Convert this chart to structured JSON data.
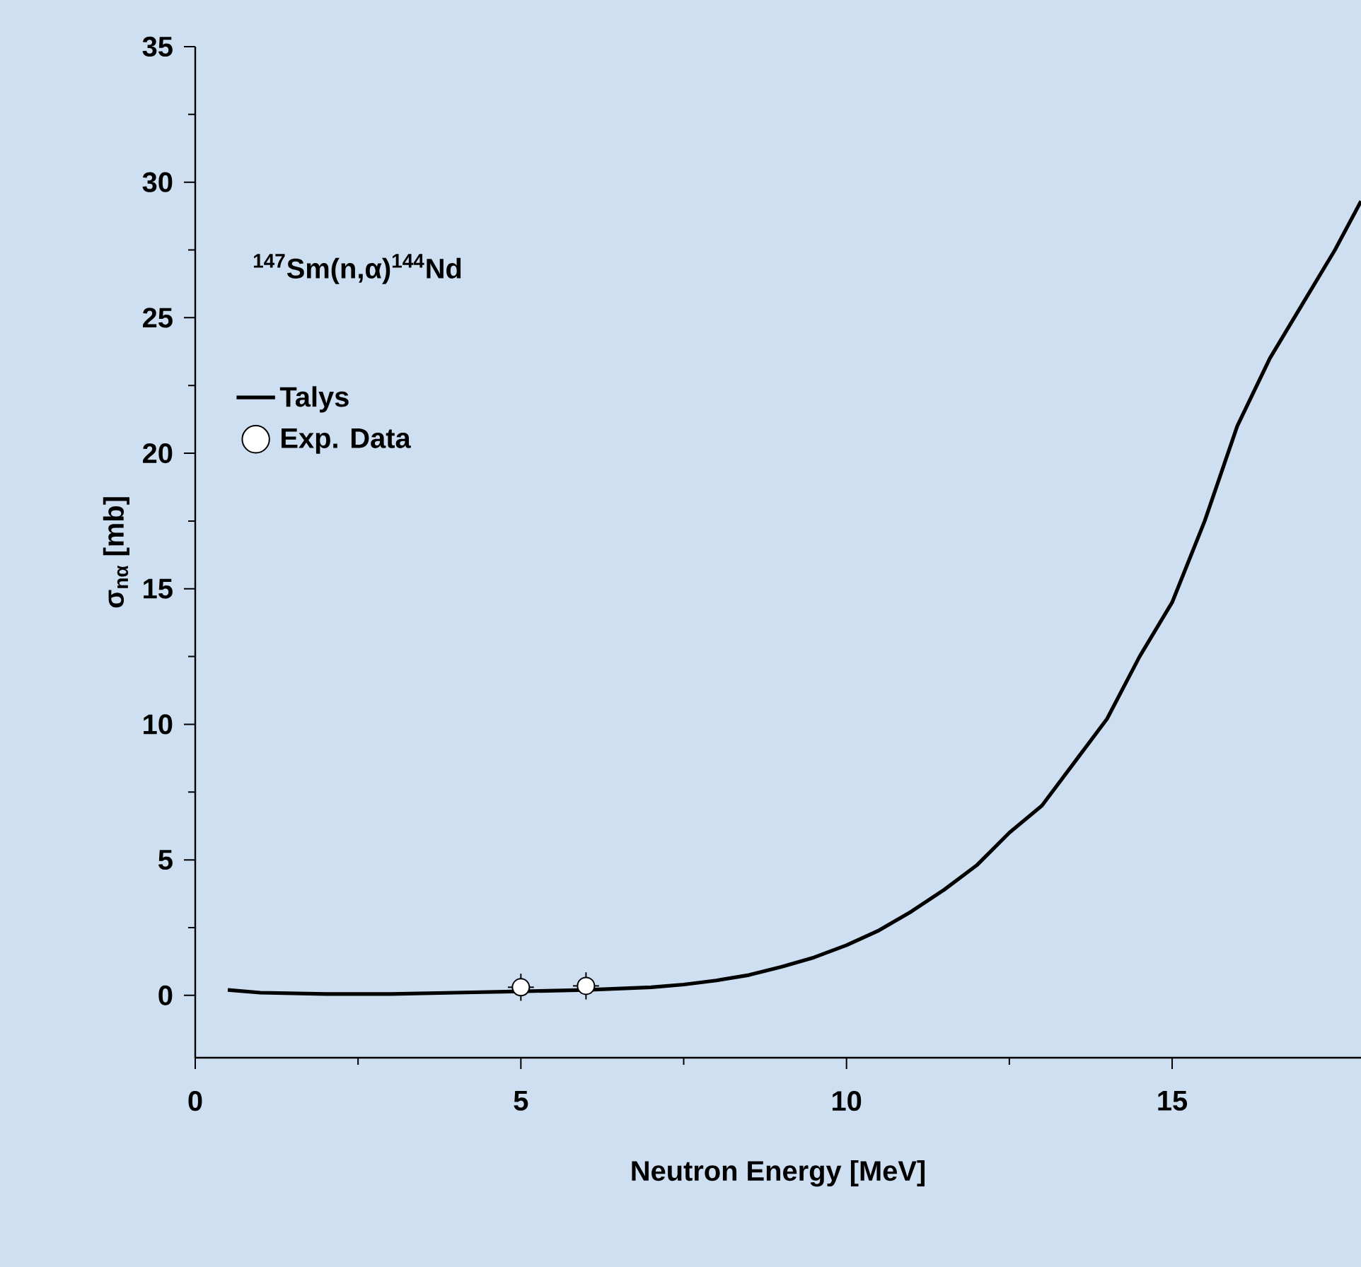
{
  "chart_data": {
    "type": "line",
    "xlabel": "Neutron Energy [MeV]",
    "ylabel": "σ$_{nα}$ [mb]",
    "annotations": [
      "$^{147}$Sm(n,α)$^{144}$Nd"
    ],
    "xlim": [
      0,
      17.9
    ],
    "ylim": [
      -2.3,
      35
    ],
    "xticks": [
      0,
      5,
      10,
      15
    ],
    "yticks": [
      0,
      5,
      10,
      15,
      20,
      25,
      30,
      35
    ],
    "legend": "top left",
    "grid": false,
    "series": [
      {
        "name": "Talys",
        "color": "#000000",
        "marker": "none",
        "line_style": "solid",
        "x": [
          0.5,
          1,
          2,
          3,
          4,
          5,
          6,
          7,
          7.5,
          8,
          8.5,
          9,
          9.5,
          10,
          10.5,
          11,
          11.5,
          12,
          12.5,
          13,
          13.5,
          14,
          14.5,
          15,
          15.5,
          16,
          16.5,
          17,
          17.5,
          17.9
        ],
        "values": [
          0.2,
          0.1,
          0.05,
          0.05,
          0.1,
          0.15,
          0.2,
          0.3,
          0.4,
          0.55,
          0.75,
          1.05,
          1.4,
          1.85,
          2.4,
          3.1,
          3.9,
          4.8,
          6.0,
          7.0,
          8.6,
          10.2,
          12.5,
          14.5,
          17.5,
          21.0,
          23.5,
          25.5,
          27.5,
          29.3
        ]
      },
      {
        "name": "Exp. Data",
        "type": "scatter",
        "color": "#000000",
        "marker": "circle",
        "x": [
          5,
          6
        ],
        "values": [
          0.3,
          0.35
        ],
        "errors": [
          0.5,
          0.5
        ],
        "xerrors": [
          0.2,
          0.2
        ]
      }
    ]
  }
}
